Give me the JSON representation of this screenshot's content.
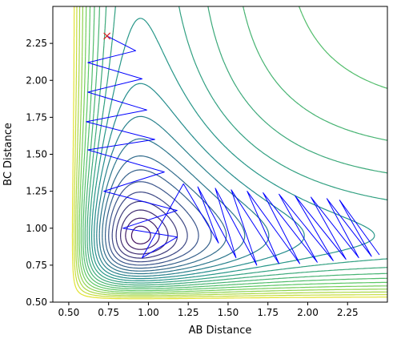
{
  "chart_data": {
    "type": "contour",
    "title": "",
    "xlabel": "AB Distance",
    "ylabel": "BC Distance",
    "xlim": [
      0.4,
      2.5
    ],
    "ylim": [
      0.5,
      2.5
    ],
    "xticks": [
      0.5,
      0.75,
      1.0,
      1.25,
      1.5,
      1.75,
      2.0,
      2.25
    ],
    "xtick_labels": [
      "0.50",
      "0.75",
      "1.00",
      "1.25",
      "1.50",
      "1.75",
      "2.00",
      "2.25"
    ],
    "yticks": [
      0.5,
      0.75,
      1.0,
      1.25,
      1.5,
      1.75,
      2.0,
      2.25
    ],
    "ytick_labels": [
      "0.50",
      "0.75",
      "1.00",
      "1.25",
      "1.50",
      "1.75",
      "2.00",
      "2.25"
    ],
    "grid": false,
    "colormap": "viridis",
    "colormap_colors": [
      "#440154",
      "#3b528b",
      "#21918c",
      "#5ec962",
      "#fde725"
    ],
    "contour_levels": 22,
    "start_marker": {
      "x": 0.74,
      "y": 2.3,
      "symbol": "x",
      "color": "#d62728"
    },
    "trajectory_color": "#0000ff",
    "trajectory": [
      [
        0.74,
        2.3
      ],
      [
        0.92,
        2.2
      ],
      [
        0.62,
        2.12
      ],
      [
        0.96,
        2.01
      ],
      [
        0.62,
        1.92
      ],
      [
        0.99,
        1.8
      ],
      [
        0.61,
        1.72
      ],
      [
        1.04,
        1.6
      ],
      [
        0.62,
        1.53
      ],
      [
        1.1,
        1.38
      ],
      [
        0.72,
        1.25
      ],
      [
        1.18,
        1.12
      ],
      [
        0.84,
        1.0
      ],
      [
        1.18,
        0.94
      ],
      [
        0.96,
        0.8
      ],
      [
        1.22,
        1.3
      ],
      [
        1.44,
        0.9
      ],
      [
        1.31,
        1.28
      ],
      [
        1.55,
        0.8
      ],
      [
        1.42,
        1.27
      ],
      [
        1.68,
        0.75
      ],
      [
        1.52,
        1.26
      ],
      [
        1.82,
        0.76
      ],
      [
        1.62,
        1.25
      ],
      [
        1.95,
        0.76
      ],
      [
        1.72,
        1.24
      ],
      [
        2.06,
        0.77
      ],
      [
        1.82,
        1.23
      ],
      [
        2.16,
        0.78
      ],
      [
        1.92,
        1.22
      ],
      [
        2.24,
        0.79
      ],
      [
        2.02,
        1.21
      ],
      [
        2.32,
        0.8
      ],
      [
        2.12,
        1.2
      ],
      [
        2.4,
        0.81
      ],
      [
        2.2,
        1.19
      ],
      [
        2.45,
        0.82
      ]
    ]
  }
}
